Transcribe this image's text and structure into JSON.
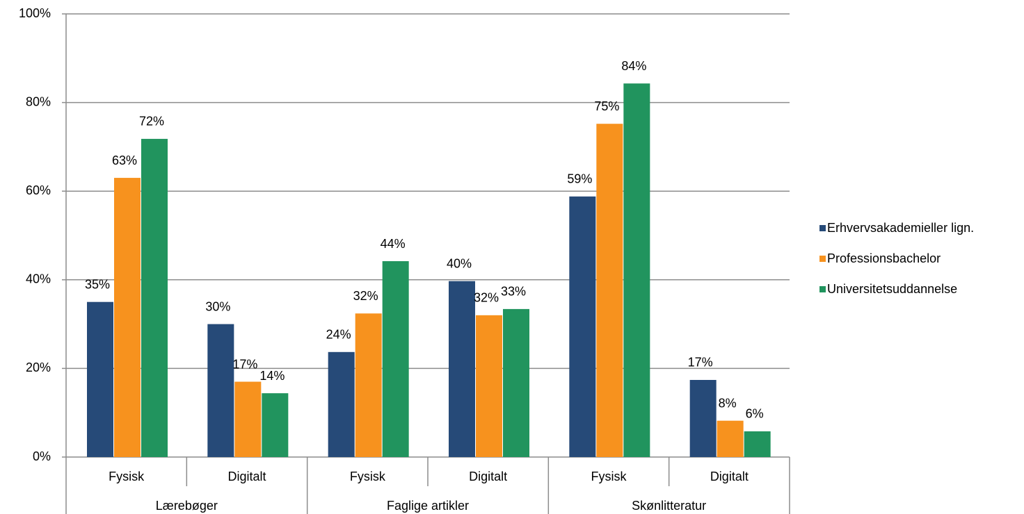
{
  "chart_data": {
    "type": "bar",
    "categories": [
      "Fysisk",
      "Digitalt",
      "Fysisk",
      "Digitalt",
      "Fysisk",
      "Digitalt"
    ],
    "category_groups": [
      "Lærebøger",
      "Faglige artikler",
      "Skønlitteratur"
    ],
    "series": [
      {
        "name": "Erhvervsakademieller lign.",
        "color": "#264a78",
        "values": [
          35,
          30,
          23.7,
          39.7,
          58.8,
          17.4
        ],
        "value_labels": [
          "35%",
          "30%",
          "24%",
          "40%",
          "59%",
          "17%"
        ]
      },
      {
        "name": "Professionsbachelor",
        "color": "#f7921e",
        "values": [
          63,
          17,
          32.4,
          32,
          75.2,
          8.2
        ],
        "value_labels": [
          "63%",
          "17%",
          "32%",
          "32%",
          "75%",
          "8%"
        ]
      },
      {
        "name": "Universitetsuddannelse",
        "color": "#21945e",
        "values": [
          71.8,
          14.4,
          44.2,
          33.4,
          84.3,
          5.8
        ],
        "value_labels": [
          "72%",
          "14%",
          "44%",
          "33%",
          "84%",
          "6%"
        ]
      }
    ],
    "ylim": [
      0,
      100
    ],
    "yticks": [
      {
        "value": 0,
        "label": "0%"
      },
      {
        "value": 20,
        "label": "20%"
      },
      {
        "value": 40,
        "label": "40%"
      },
      {
        "value": 60,
        "label": "60%"
      },
      {
        "value": 80,
        "label": "80%"
      },
      {
        "value": 100,
        "label": "100%"
      }
    ],
    "grid": true,
    "legend": "right"
  }
}
